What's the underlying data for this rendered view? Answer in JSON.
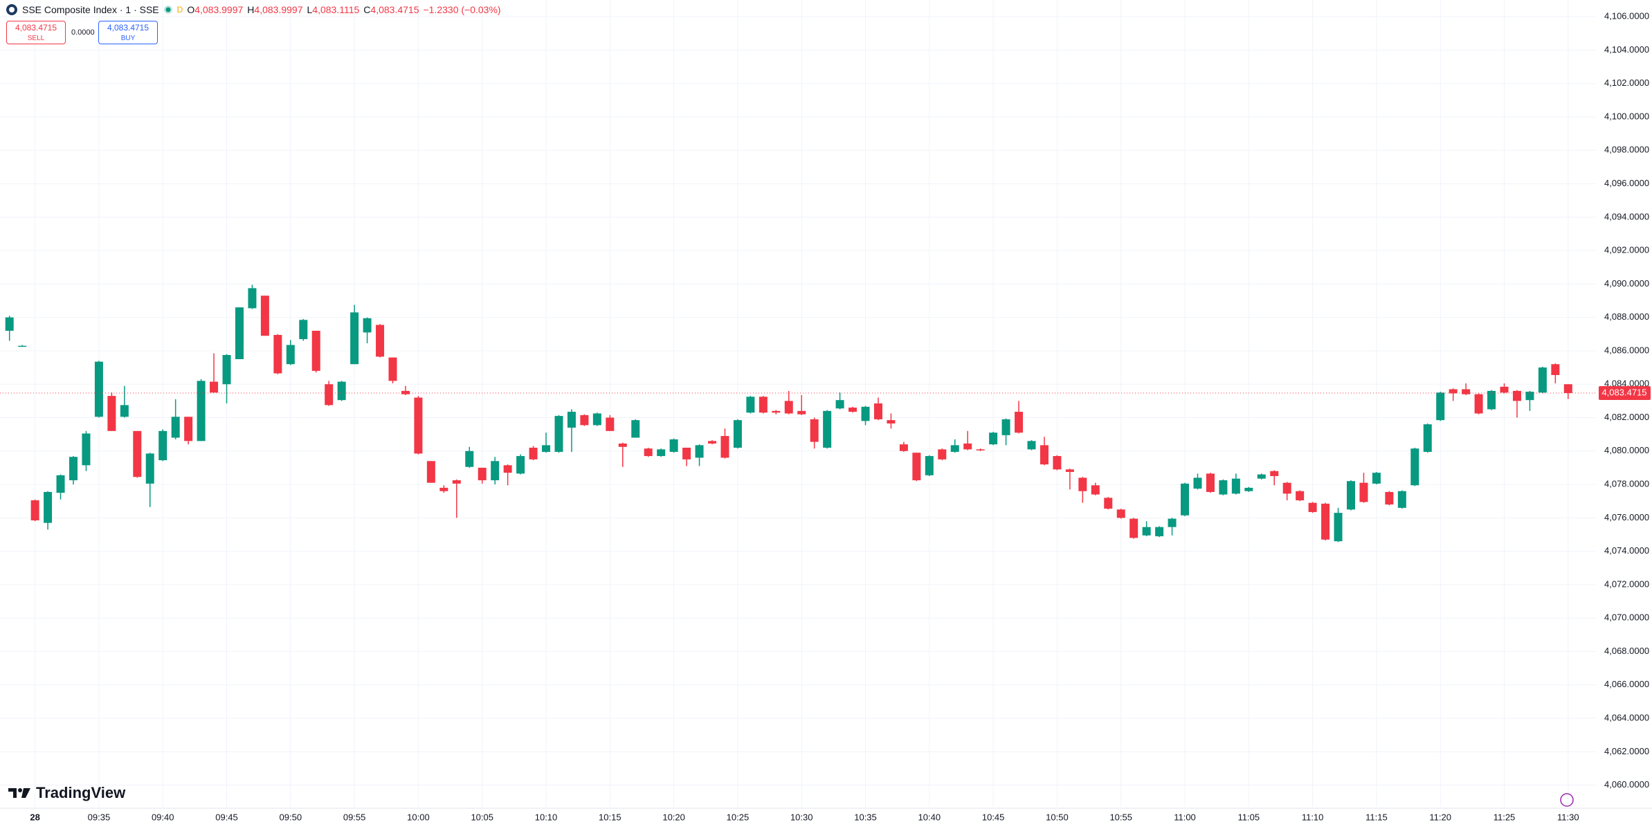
{
  "header": {
    "symbol": "SSE Composite Index · 1 · SSE",
    "badge": "D",
    "ohlc": [
      {
        "key": "O",
        "value": "4,083.9997"
      },
      {
        "key": "H",
        "value": "4,083.9997"
      },
      {
        "key": "L",
        "value": "4,083.1115"
      },
      {
        "key": "C",
        "value": "4,083.4715"
      }
    ],
    "change": "−1.2330 (−0.03%)"
  },
  "trade": {
    "sell_price": "4,083.4715",
    "sell": "SELL",
    "spread": "0.0000",
    "buy_price": "4,083.4715",
    "buy": "BUY"
  },
  "brand": "TradingView",
  "chart_data": {
    "type": "candlestick",
    "up_color": "#089981",
    "down_color": "#f23645",
    "grid": true,
    "x": [
      "09:28",
      "09:29",
      "09:30",
      "09:31",
      "09:32",
      "09:33",
      "09:34",
      "09:35",
      "09:36",
      "09:37",
      "09:38",
      "09:39",
      "09:40",
      "09:41",
      "09:42",
      "09:43",
      "09:44",
      "09:45",
      "09:46",
      "09:47",
      "09:48",
      "09:49",
      "09:50",
      "09:51",
      "09:52",
      "09:53",
      "09:54",
      "09:55",
      "09:56",
      "09:57",
      "09:58",
      "09:59",
      "10:00",
      "10:01",
      "10:02",
      "10:03",
      "10:04",
      "10:05",
      "10:06",
      "10:07",
      "10:08",
      "10:09",
      "10:10",
      "10:11",
      "10:12",
      "10:13",
      "10:14",
      "10:15",
      "10:16",
      "10:17",
      "10:18",
      "10:19",
      "10:20",
      "10:21",
      "10:22",
      "10:23",
      "10:24",
      "10:25",
      "10:26",
      "10:27",
      "10:28",
      "10:29",
      "10:30",
      "10:31",
      "10:32",
      "10:33",
      "10:34",
      "10:35",
      "10:36",
      "10:37",
      "10:38",
      "10:39",
      "10:40",
      "10:41",
      "10:42",
      "10:43",
      "10:44",
      "10:45",
      "10:46",
      "10:47",
      "10:48",
      "10:49",
      "10:50",
      "10:51",
      "10:52",
      "10:53",
      "10:54",
      "10:55",
      "10:56",
      "10:57",
      "10:58",
      "10:59",
      "11:00",
      "11:01",
      "11:02",
      "11:03",
      "11:04",
      "11:05",
      "11:06",
      "11:07",
      "11:08",
      "11:09",
      "11:10",
      "11:11",
      "11:12",
      "11:13",
      "11:14",
      "11:15",
      "11:16",
      "11:17",
      "11:18",
      "11:19",
      "11:20",
      "11:21",
      "11:22",
      "11:23",
      "11:24",
      "11:25",
      "11:26",
      "11:27",
      "11:28",
      "11:29",
      "11:30"
    ],
    "open": [
      4087.2,
      4086.3,
      4077.05,
      4075.7,
      4077.5,
      4078.25,
      4079.15,
      4082.05,
      4083.3,
      4082.05,
      4081.2,
      4078.05,
      4079.45,
      4080.8,
      4082.05,
      4080.6,
      4084.15,
      4084.0,
      4085.5,
      4088.55,
      4089.3,
      4086.95,
      4085.2,
      4086.7,
      4087.2,
      4084.0,
      4083.05,
      4085.2,
      4087.1,
      4087.55,
      4085.6,
      4083.6,
      4083.2,
      4079.4,
      4077.8,
      4078.25,
      4079.05,
      4079.0,
      4078.25,
      4079.15,
      4078.65,
      4080.2,
      4079.95,
      4079.95,
      4081.4,
      4082.15,
      4081.55,
      4082.0,
      4080.45,
      4080.8,
      4080.15,
      4079.7,
      4079.95,
      4080.2,
      4079.6,
      4080.6,
      4080.9,
      4080.2,
      4082.3,
      4083.25,
      4082.4,
      4083.0,
      4082.4,
      4081.9,
      4080.2,
      4082.55,
      4082.6,
      4081.8,
      4082.85,
      4081.85,
      4080.4,
      4079.9,
      4078.55,
      4080.1,
      4079.95,
      4080.45,
      4080.1,
      4080.4,
      4080.95,
      4082.35,
      4080.1,
      4080.35,
      4079.7,
      4078.9,
      4078.4,
      4077.95,
      4077.2,
      4076.5,
      4075.95,
      4074.95,
      4074.9,
      4075.45,
      4076.15,
      4077.75,
      4078.65,
      4077.4,
      4077.45,
      4077.6,
      4078.35,
      4078.8,
      4078.1,
      4077.6,
      4076.9,
      4076.85,
      4074.6,
      4076.5,
      4078.1,
      4078.05,
      4077.55,
      4076.6,
      4077.95,
      4079.95,
      4081.85,
      4083.7,
      4083.7,
      4083.4,
      4082.5,
      4083.85,
      4083.6,
      4083.05,
      4083.5,
      4085.2,
      4083.9997
    ],
    "high": [
      4088.1,
      4086.35,
      4077.1,
      4077.6,
      4078.6,
      4079.7,
      4081.2,
      4085.4,
      4083.5,
      4083.9,
      4081.2,
      4079.9,
      4081.3,
      4083.1,
      4082.05,
      4084.3,
      4085.85,
      4085.8,
      4088.6,
      4089.95,
      4089.3,
      4087.0,
      4086.65,
      4087.9,
      4087.2,
      4084.2,
      4084.2,
      4088.75,
      4088.0,
      4087.6,
      4085.6,
      4083.9,
      4083.3,
      4079.4,
      4077.95,
      4078.3,
      4080.25,
      4079.0,
      4079.65,
      4079.2,
      4079.8,
      4080.3,
      4081.1,
      4082.15,
      4082.5,
      4082.2,
      4082.3,
      4082.15,
      4080.5,
      4081.9,
      4080.2,
      4080.15,
      4080.75,
      4080.2,
      4080.4,
      4080.65,
      4081.35,
      4081.9,
      4083.3,
      4083.3,
      4082.45,
      4083.6,
      4083.35,
      4082.0,
      4082.45,
      4083.5,
      4082.65,
      4082.7,
      4083.2,
      4082.25,
      4080.55,
      4079.9,
      4079.75,
      4080.15,
      4080.7,
      4081.2,
      4080.15,
      4081.15,
      4081.95,
      4083.0,
      4080.65,
      4080.85,
      4079.75,
      4078.95,
      4078.45,
      4078.1,
      4077.25,
      4076.55,
      4076.0,
      4075.8,
      4075.5,
      4076.0,
      4078.1,
      4078.65,
      4078.7,
      4078.3,
      4078.65,
      4077.85,
      4078.65,
      4078.85,
      4078.15,
      4077.65,
      4076.95,
      4076.9,
      4076.6,
      4078.25,
      4078.7,
      4078.75,
      4077.6,
      4077.65,
      4080.2,
      4081.65,
      4083.55,
      4083.75,
      4084.05,
      4083.45,
      4083.65,
      4084.05,
      4083.65,
      4083.6,
      4085.05,
      4085.25,
      4083.9997
    ],
    "low": [
      4086.6,
      4086.25,
      4075.8,
      4075.3,
      4077.1,
      4078.0,
      4078.8,
      4082.0,
      4081.2,
      4082.0,
      4078.4,
      4076.65,
      4079.4,
      4080.7,
      4080.4,
      4080.6,
      4083.5,
      4082.85,
      4085.5,
      4088.5,
      4086.9,
      4084.6,
      4085.15,
      4086.6,
      4084.7,
      4082.7,
      4083.0,
      4085.2,
      4086.45,
      4085.6,
      4084.05,
      4083.35,
      4079.8,
      4078.1,
      4077.5,
      4076.0,
      4079.0,
      4078.05,
      4078.0,
      4077.95,
      4078.6,
      4079.45,
      4079.9,
      4079.9,
      4079.95,
      4081.5,
      4081.5,
      4081.2,
      4079.05,
      4080.8,
      4079.65,
      4079.65,
      4079.9,
      4079.1,
      4079.1,
      4080.4,
      4079.55,
      4080.15,
      4082.25,
      4082.25,
      4082.2,
      4082.2,
      4082.15,
      4080.15,
      4080.15,
      4082.5,
      4082.3,
      4081.55,
      4081.85,
      4081.35,
      4079.95,
      4078.2,
      4078.5,
      4079.45,
      4079.9,
      4080.05,
      4080.0,
      4080.35,
      4080.35,
      4081.05,
      4080.05,
      4079.15,
      4078.85,
      4077.7,
      4076.9,
      4077.35,
      4076.5,
      4075.95,
      4074.75,
      4074.9,
      4074.85,
      4074.95,
      4076.1,
      4077.7,
      4077.5,
      4077.35,
      4077.4,
      4077.55,
      4078.3,
      4077.95,
      4077.05,
      4077.0,
      4076.3,
      4074.65,
      4074.55,
      4076.45,
      4076.9,
      4078.0,
      4076.75,
      4076.55,
      4077.9,
      4079.9,
      4081.8,
      4083.0,
      4083.35,
      4082.2,
      4082.45,
      4083.45,
      4082.0,
      4082.4,
      4083.45,
      4084.05,
      4083.1115
    ],
    "close": [
      4088.0,
      4086.3,
      4075.85,
      4077.55,
      4078.55,
      4079.65,
      4081.05,
      4085.35,
      4081.2,
      4082.75,
      4078.45,
      4079.85,
      4081.2,
      4082.05,
      4080.6,
      4084.2,
      4083.5,
      4085.75,
      4088.6,
      4089.75,
      4086.9,
      4084.65,
      4086.35,
      4087.85,
      4084.8,
      4082.75,
      4084.15,
      4088.3,
      4087.95,
      4085.65,
      4084.2,
      4083.4,
      4079.85,
      4078.1,
      4077.6,
      4078.05,
      4080.0,
      4078.25,
      4079.4,
      4078.7,
      4079.7,
      4079.5,
      4080.35,
      4082.1,
      4082.35,
      4081.55,
      4082.25,
      4081.2,
      4080.25,
      4081.85,
      4079.7,
      4080.1,
      4080.7,
      4079.5,
      4080.35,
      4080.45,
      4079.6,
      4081.85,
      4083.25,
      4082.3,
      4082.3,
      4082.25,
      4082.2,
      4080.55,
      4082.4,
      4083.05,
      4082.35,
      4082.65,
      4081.9,
      4081.65,
      4080.0,
      4078.25,
      4079.7,
      4079.5,
      4080.35,
      4080.1,
      4080.05,
      4081.1,
      4081.9,
      4081.1,
      4080.6,
      4079.2,
      4078.9,
      4078.75,
      4077.6,
      4077.4,
      4076.55,
      4076.0,
      4074.8,
      4075.45,
      4075.45,
      4075.95,
      4078.05,
      4078.4,
      4077.55,
      4078.25,
      4078.35,
      4077.8,
      4078.6,
      4078.5,
      4077.45,
      4077.05,
      4076.35,
      4074.7,
      4076.3,
      4078.2,
      4076.95,
      4078.7,
      4076.8,
      4077.6,
      4080.15,
      4081.6,
      4083.5,
      4083.45,
      4083.4,
      4082.25,
      4083.6,
      4083.5,
      4083.0,
      4083.55,
      4085.0,
      4084.55,
      4083.4715
    ],
    "ylim": [
      4058.7,
      4107.0
    ],
    "yticks": [
      {
        "value": 4060,
        "label": "4,060.0000"
      },
      {
        "value": 4062,
        "label": "4,062.0000"
      },
      {
        "value": 4064,
        "label": "4,064.0000"
      },
      {
        "value": 4066,
        "label": "4,066.0000"
      },
      {
        "value": 4068,
        "label": "4,068.0000"
      },
      {
        "value": 4070,
        "label": "4,070.0000"
      },
      {
        "value": 4072,
        "label": "4,072.0000"
      },
      {
        "value": 4074,
        "label": "4,074.0000"
      },
      {
        "value": 4076,
        "label": "4,076.0000"
      },
      {
        "value": 4078,
        "label": "4,078.0000"
      },
      {
        "value": 4080,
        "label": "4,080.0000"
      },
      {
        "value": 4082,
        "label": "4,082.0000"
      },
      {
        "value": 4084,
        "label": "4,084.0000"
      },
      {
        "value": 4086,
        "label": "4,086.0000"
      },
      {
        "value": 4088,
        "label": "4,088.0000"
      },
      {
        "value": 4090,
        "label": "4,090.0000"
      },
      {
        "value": 4092,
        "label": "4,092.0000"
      },
      {
        "value": 4094,
        "label": "4,094.0000"
      },
      {
        "value": 4096,
        "label": "4,096.0000"
      },
      {
        "value": 4098,
        "label": "4,098.0000"
      },
      {
        "value": 4100,
        "label": "4,100.0000"
      },
      {
        "value": 4102,
        "label": "4,102.0000"
      },
      {
        "value": 4104,
        "label": "4,104.0000"
      },
      {
        "value": 4106,
        "label": "4,106.0000"
      }
    ],
    "xticks": [
      {
        "value": "09:30",
        "label": "28"
      },
      "09:35",
      "09:40",
      "09:45",
      "09:50",
      "09:55",
      "10:00",
      "10:05",
      "10:10",
      "10:15",
      "10:20",
      "10:25",
      "10:30",
      "10:35",
      "10:40",
      "10:45",
      "10:50",
      "10:55",
      "11:00",
      "11:05",
      "11:10",
      "11:15",
      "11:20",
      "11:25",
      "11:30"
    ],
    "last_price": {
      "value": 4083.4715,
      "label": "4,083.4715"
    }
  }
}
